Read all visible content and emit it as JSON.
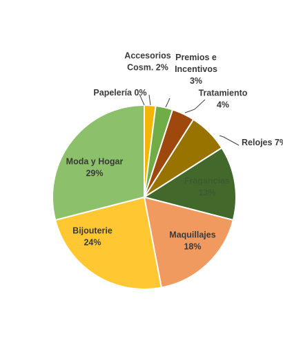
{
  "chart_data": {
    "type": "pie",
    "title": "",
    "legend": "none",
    "slices": [
      {
        "name": "Accesorios Cosm.",
        "value": 2,
        "color": "#f2b705",
        "label_lines": [
          "Accesorios",
          "Cosm. 2%"
        ]
      },
      {
        "name": "Premios e Incentivos",
        "value": 3,
        "color": "#70ad47",
        "label_lines": [
          "Premios e",
          "Incentivos",
          "3%"
        ]
      },
      {
        "name": "Tratamiento",
        "value": 4,
        "color": "#9e480e",
        "label_lines": [
          "Tratamiento",
          "4%"
        ]
      },
      {
        "name": "Relojes",
        "value": 7,
        "color": "#997300",
        "label_lines": [
          "Relojes 7%"
        ]
      },
      {
        "name": "Fragancias",
        "value": 13,
        "color": "#43682b",
        "label_lines": [
          "Fragancias",
          "13%"
        ]
      },
      {
        "name": "Maquillajes",
        "value": 18,
        "color": "#f19a5f",
        "label_lines": [
          "Maquillajes",
          "18%"
        ]
      },
      {
        "name": "Bijouterie",
        "value": 24,
        "color": "#ffc833",
        "label_lines": [
          "Bijouterie",
          "24%"
        ]
      },
      {
        "name": "Moda y Hogar",
        "value": 29,
        "color": "#8cc06a",
        "label_lines": [
          "Moda y Hogar",
          "29%"
        ]
      },
      {
        "name": "Papelería",
        "value": 0,
        "color": "#4472c4",
        "label_lines": [
          "Papelería 0%"
        ]
      }
    ]
  }
}
